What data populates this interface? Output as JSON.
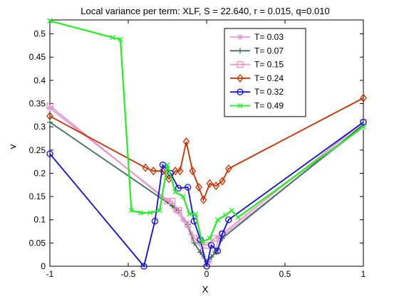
{
  "chart_data": {
    "type": "line",
    "title": "Local variance per term: XLF, S = 22.640, r = 0.015, q=0.010",
    "xlabel": "X",
    "ylabel": "v",
    "xlim": [
      -1,
      1
    ],
    "ylim": [
      0,
      0.53
    ],
    "xticks": [
      -1,
      -0.5,
      0,
      0.5,
      1
    ],
    "xtick_labels": [
      "-1",
      "-0.5",
      "0",
      "0.5",
      "1"
    ],
    "yticks": [
      0,
      0.05,
      0.1,
      0.15,
      0.2,
      0.25,
      0.3,
      0.35,
      0.4,
      0.45,
      0.5
    ],
    "ytick_labels": [
      "0",
      "0.05",
      "0.1",
      "0.15",
      "0.2",
      "0.25",
      "0.3",
      "0.35",
      "0.4",
      "0.45",
      "0.5"
    ],
    "grid": false,
    "legend_position": "top-right",
    "series": [
      {
        "name": "T= 0.03",
        "color": "#d9a0e0",
        "marker": "star",
        "x": [
          -1,
          -0.24,
          -0.2,
          -0.15,
          -0.1,
          -0.05,
          -0.02,
          0,
          0.02,
          0.05,
          0.08,
          1
        ],
        "y": [
          0.34,
          0.14,
          0.12,
          0.1,
          0.07,
          0.05,
          0.02,
          0.005,
          0.01,
          0.03,
          0.06,
          0.3
        ]
      },
      {
        "name": "T= 0.07",
        "color": "#3c6e5a",
        "marker": "plus",
        "x": [
          -1,
          -0.22,
          -0.18,
          -0.12,
          -0.08,
          -0.04,
          0,
          0.03,
          0.06,
          0.1,
          1
        ],
        "y": [
          0.31,
          0.13,
          0.12,
          0.09,
          0.05,
          0.03,
          0.01,
          0.02,
          0.03,
          0.06,
          0.305
        ]
      },
      {
        "name": "T= 0.15",
        "color": "#f090c0",
        "marker": "square",
        "x": [
          -1,
          -0.25,
          -0.22,
          -0.18,
          -0.12,
          -0.08,
          0,
          0.05,
          0.1,
          1
        ],
        "y": [
          0.345,
          0.14,
          0.14,
          0.12,
          0.09,
          0.06,
          0.045,
          0.06,
          0.07,
          0.31
        ]
      },
      {
        "name": "T= 0.24",
        "color": "#c83000",
        "marker": "diamond",
        "x": [
          -1,
          -0.39,
          -0.34,
          -0.28,
          -0.24,
          -0.2,
          -0.17,
          -0.13,
          -0.09,
          -0.05,
          -0.02,
          0.02,
          0.06,
          0.1,
          0.14,
          1
        ],
        "y": [
          0.323,
          0.212,
          0.205,
          0.205,
          0.188,
          0.205,
          0.205,
          0.268,
          0.205,
          0.17,
          0.143,
          0.178,
          0.173,
          0.183,
          0.21,
          0.362
        ]
      },
      {
        "name": "T= 0.32",
        "color": "#1010dd",
        "marker": "circle",
        "x": [
          -1,
          -0.4,
          -0.33,
          -0.28,
          -0.23,
          -0.18,
          -0.12,
          -0.08,
          -0.04,
          0,
          0.03,
          0.07,
          0.1,
          0.14,
          1
        ],
        "y": [
          0.242,
          0.0,
          0.097,
          0.218,
          0.2,
          0.168,
          0.17,
          0.097,
          0.057,
          0.0,
          0.045,
          0.033,
          0.07,
          0.1,
          0.31
        ]
      },
      {
        "name": "T= 0.49",
        "color": "#22ee22",
        "marker": "x",
        "x": [
          -1,
          -0.6,
          -0.55,
          -0.48,
          -0.42,
          -0.36,
          -0.3,
          -0.25,
          -0.2,
          -0.15,
          -0.11,
          -0.07,
          -0.03,
          0.02,
          0.07,
          0.12,
          0.16,
          0.2,
          1
        ],
        "y": [
          0.528,
          0.492,
          0.488,
          0.12,
          0.115,
          0.115,
          0.12,
          0.218,
          0.16,
          0.15,
          0.112,
          0.112,
          0.052,
          0.06,
          0.1,
          0.11,
          0.12,
          0.105,
          0.3
        ]
      }
    ]
  }
}
